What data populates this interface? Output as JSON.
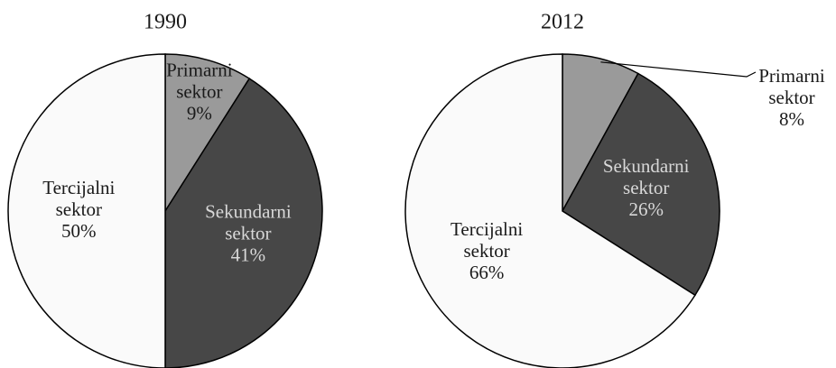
{
  "chart_data": [
    {
      "type": "pie",
      "title": "1990",
      "categories": [
        "Primarni sektor",
        "Sekundarni sektor",
        "Tercijalni sektor"
      ],
      "values": [
        9,
        41,
        50
      ],
      "value_labels": [
        "9%",
        "41%",
        "50%"
      ],
      "colors": [
        "#9a9a9a",
        "#474747",
        "#fafafa"
      ]
    },
    {
      "type": "pie",
      "title": "2012",
      "categories": [
        "Primarni sektor",
        "Sekundarni sektor",
        "Tercijalni sektor"
      ],
      "values": [
        8,
        26,
        66
      ],
      "value_labels": [
        "8%",
        "26%",
        "66%"
      ],
      "colors": [
        "#9a9a9a",
        "#474747",
        "#fafafa"
      ]
    }
  ]
}
